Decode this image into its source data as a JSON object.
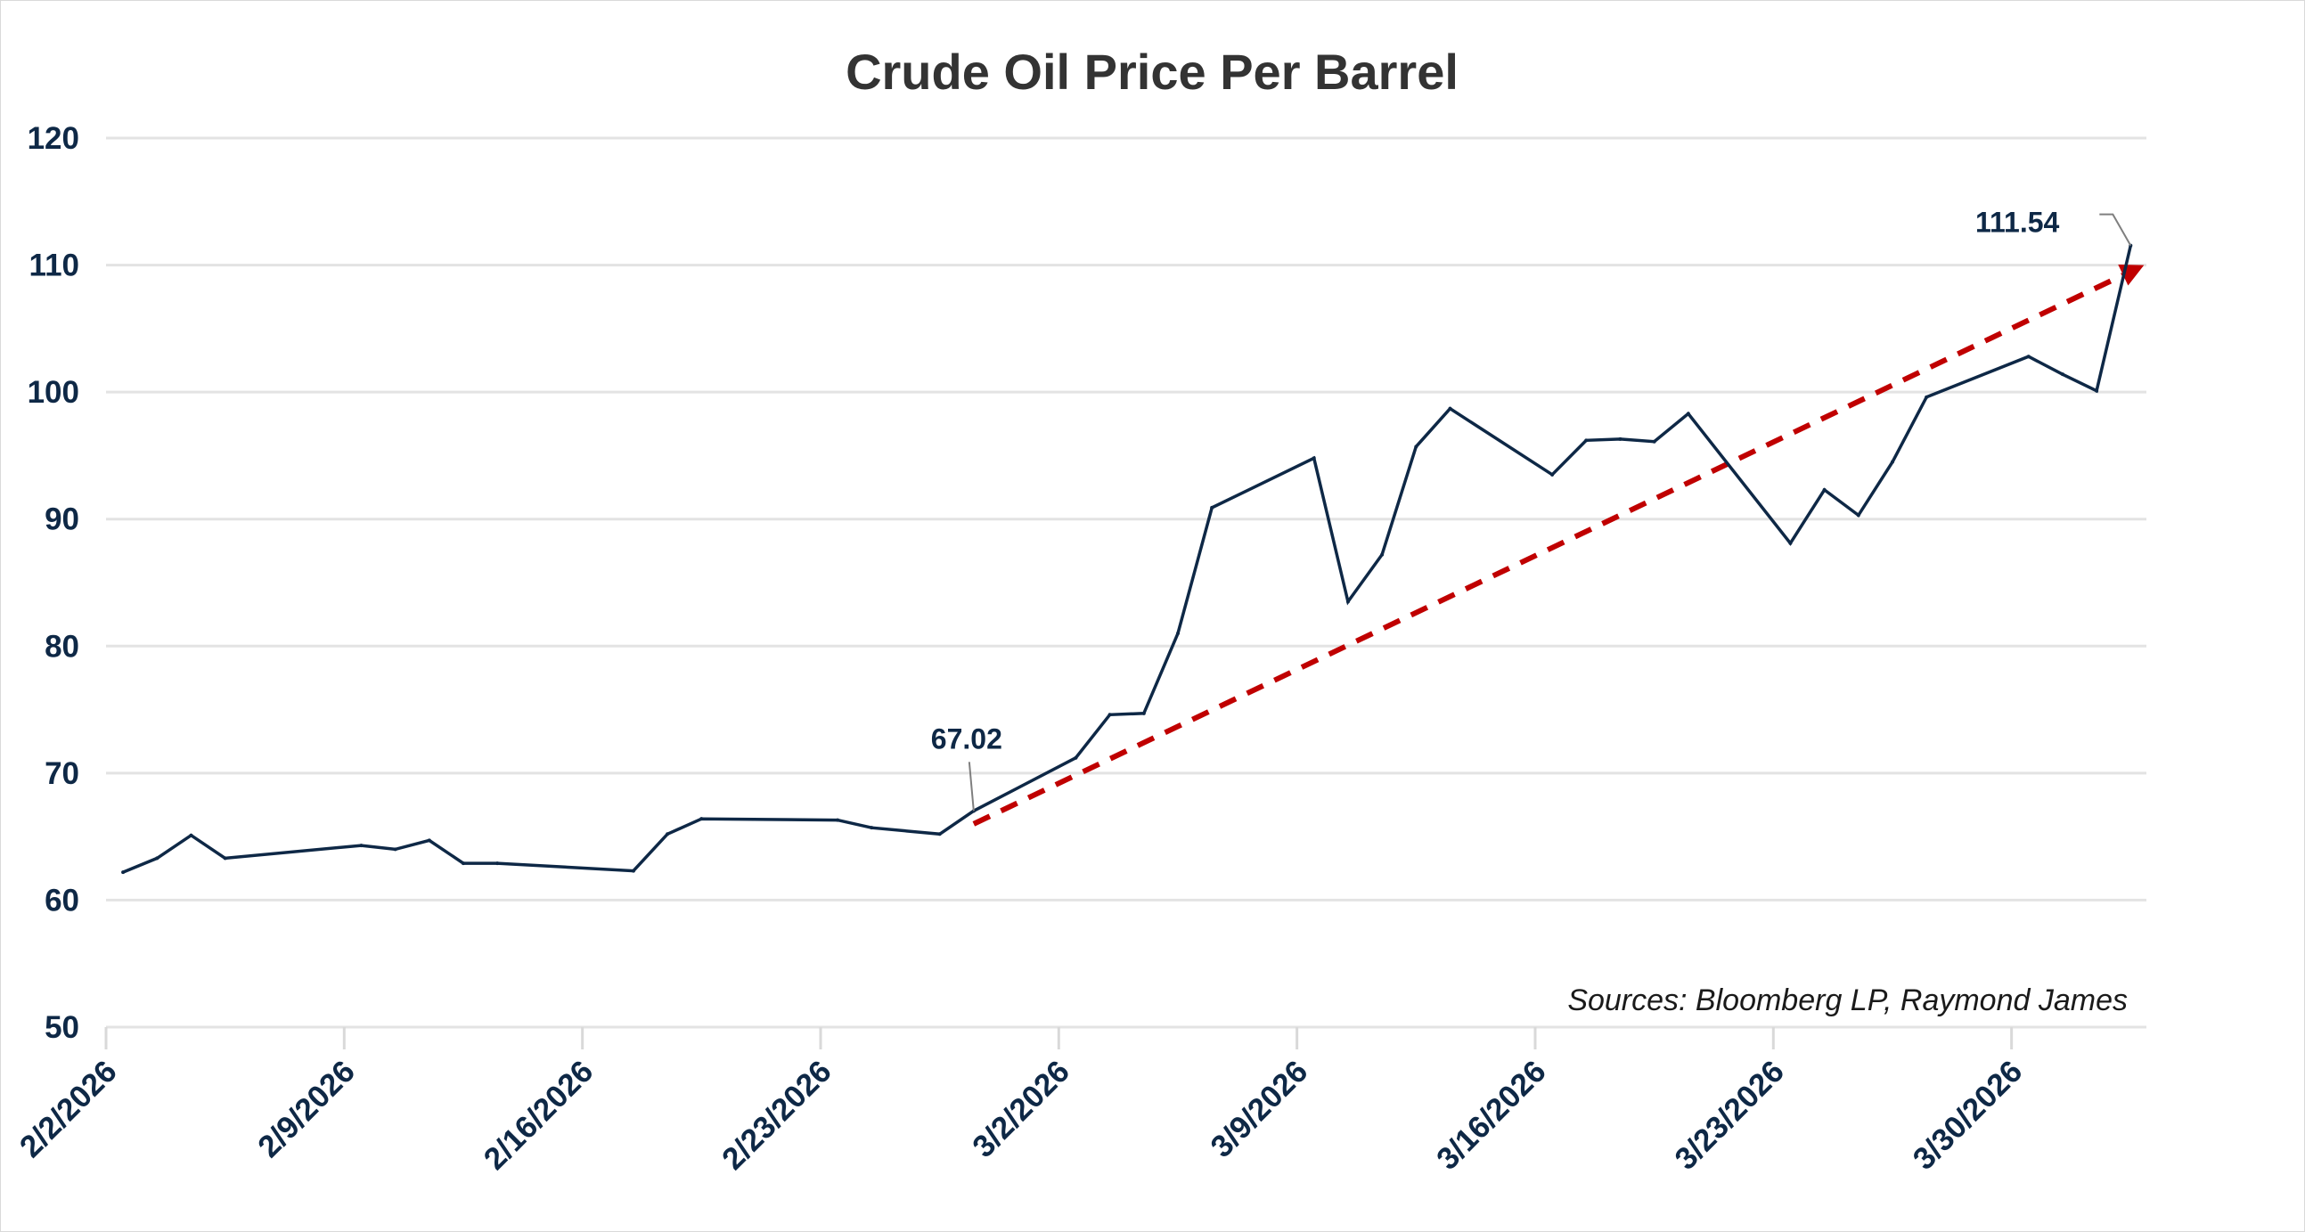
{
  "chart_data": {
    "type": "line",
    "title": "Crude Oil Price Per Barrel",
    "xlabel": "",
    "ylabel": "",
    "ylim": [
      50,
      120
    ],
    "yticks": [
      50,
      60,
      70,
      80,
      90,
      100,
      110,
      120
    ],
    "xticks": [
      "2/2/2026",
      "2/9/2026",
      "2/16/2026",
      "2/23/2026",
      "3/2/2026",
      "3/9/2026",
      "3/16/2026",
      "3/23/2026",
      "3/30/2026"
    ],
    "grid": "horizontal",
    "series": [
      {
        "color": "#0e2846",
        "points": [
          [
            "2026-02-02",
            62.2
          ],
          [
            "2026-02-03",
            63.3
          ],
          [
            "2026-02-04",
            65.1
          ],
          [
            "2026-02-05",
            63.3
          ],
          [
            "2026-02-09",
            64.3
          ],
          [
            "2026-02-10",
            64.0
          ],
          [
            "2026-02-11",
            64.7
          ],
          [
            "2026-02-12",
            62.9
          ],
          [
            "2026-02-13",
            62.9
          ],
          [
            "2026-02-17",
            62.3
          ],
          [
            "2026-02-18",
            65.2
          ],
          [
            "2026-02-19",
            66.4
          ],
          [
            "2026-02-23",
            66.3
          ],
          [
            "2026-02-24",
            65.7
          ],
          [
            "2026-02-26",
            65.2
          ],
          [
            "2026-02-27",
            67.02
          ],
          [
            "2026-03-02",
            71.2
          ],
          [
            "2026-03-03",
            74.6
          ],
          [
            "2026-03-04",
            74.7
          ],
          [
            "2026-03-05",
            81.0
          ],
          [
            "2026-03-06",
            90.9
          ],
          [
            "2026-03-09",
            94.8
          ],
          [
            "2026-03-10",
            83.5
          ],
          [
            "2026-03-11",
            87.2
          ],
          [
            "2026-03-12",
            95.7
          ],
          [
            "2026-03-13",
            98.7
          ],
          [
            "2026-03-16",
            93.5
          ],
          [
            "2026-03-17",
            96.2
          ],
          [
            "2026-03-18",
            96.3
          ],
          [
            "2026-03-19",
            96.1
          ],
          [
            "2026-03-20",
            98.3
          ],
          [
            "2026-03-23",
            88.1
          ],
          [
            "2026-03-24",
            92.3
          ],
          [
            "2026-03-25",
            90.3
          ],
          [
            "2026-03-26",
            94.5
          ],
          [
            "2026-03-27",
            99.6
          ],
          [
            "2026-03-30",
            102.8
          ],
          [
            "2026-03-31",
            101.4
          ],
          [
            "2026-04-01",
            100.1
          ],
          [
            "2026-04-02",
            111.54
          ]
        ]
      }
    ],
    "trend_arrow": {
      "color": "#c00000",
      "style": "dashed",
      "from": [
        "2026-02-27",
        66.0
      ],
      "to": [
        "2026-04-02",
        110.0
      ]
    },
    "annotations": [
      {
        "text": "67.02",
        "date": "2026-02-27",
        "value": 67.02
      },
      {
        "text": "111.54",
        "date": "2026-04-02",
        "value": 111.54
      }
    ],
    "source_note": "Sources: Bloomberg LP, Raymond James"
  }
}
